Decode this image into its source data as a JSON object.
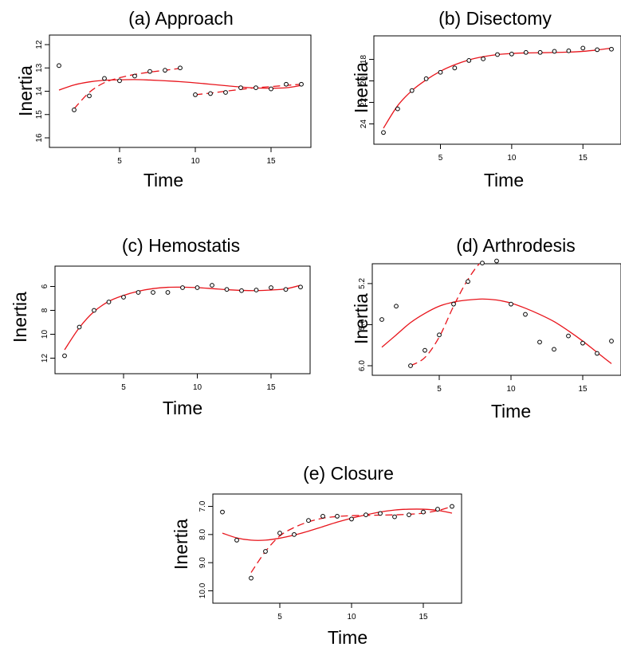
{
  "colors": {
    "fit": "#e8141b",
    "points": "#000000",
    "frame": "#000000",
    "background": "#ffffff"
  },
  "chart_data": [
    {
      "type": "scatter",
      "title": "(a) Approach",
      "xlabel": "Time",
      "ylabel": "Inertia",
      "xlim": [
        1,
        17
      ],
      "ylim": [
        16,
        12
      ],
      "y_reversed": true,
      "xticks": [
        5,
        10,
        15
      ],
      "yticks": [
        12,
        13,
        14,
        15,
        16
      ],
      "points": {
        "x": [
          1,
          2,
          3,
          4,
          5,
          6,
          7,
          8,
          9,
          10,
          11,
          12,
          13,
          14,
          15,
          16,
          17
        ],
        "y": [
          12.9,
          14.8,
          14.2,
          13.45,
          13.55,
          13.35,
          13.15,
          13.1,
          13.0,
          14.15,
          14.1,
          14.05,
          13.85,
          13.85,
          13.9,
          13.7,
          13.7
        ]
      },
      "fit_solid": {
        "x": [
          1,
          2,
          3,
          4,
          5,
          6,
          7,
          8,
          9,
          10,
          11,
          12,
          13,
          14,
          15,
          16,
          17
        ],
        "y": [
          13.95,
          13.73,
          13.6,
          13.53,
          13.51,
          13.5,
          13.52,
          13.55,
          13.59,
          13.64,
          13.7,
          13.76,
          13.82,
          13.86,
          13.87,
          13.85,
          13.75
        ]
      },
      "fit_dashed": [
        {
          "x": [
            2,
            3,
            4,
            5,
            6,
            7,
            8,
            9
          ],
          "y": [
            14.75,
            14.05,
            13.63,
            13.42,
            13.28,
            13.18,
            13.1,
            13.02
          ]
        },
        {
          "x": [
            10,
            11,
            12,
            13,
            14,
            15,
            16,
            17
          ],
          "y": [
            14.15,
            14.08,
            14.0,
            13.92,
            13.85,
            13.8,
            13.75,
            13.7
          ]
        }
      ]
    },
    {
      "type": "scatter",
      "title": "(b) Disectomy",
      "xlabel": "Time",
      "ylabel": "Inertia",
      "xlim": [
        1,
        17
      ],
      "ylim": [
        25,
        16.7
      ],
      "y_reversed": true,
      "xticks": [
        5,
        10,
        15
      ],
      "yticks": [
        18,
        20,
        22,
        24
      ],
      "points": {
        "x": [
          1,
          2,
          3,
          4,
          5,
          6,
          7,
          8,
          9,
          10,
          11,
          12,
          13,
          14,
          15,
          16,
          17
        ],
        "y": [
          24.8,
          22.6,
          20.9,
          19.8,
          19.2,
          18.8,
          18.1,
          17.95,
          17.55,
          17.5,
          17.35,
          17.35,
          17.25,
          17.2,
          16.95,
          17.1,
          17.05
        ]
      },
      "fit_solid": {
        "x": [
          1,
          2,
          3,
          4,
          5,
          6,
          7,
          8,
          9,
          10,
          11,
          12,
          13,
          14,
          15,
          16,
          17
        ],
        "y": [
          24.4,
          22.3,
          20.9,
          19.9,
          19.1,
          18.5,
          18.05,
          17.75,
          17.55,
          17.45,
          17.4,
          17.38,
          17.36,
          17.32,
          17.25,
          17.12,
          16.95
        ]
      },
      "fit_dashed": []
    },
    {
      "type": "scatter",
      "title": "(c) Hemostatis",
      "xlabel": "Time",
      "ylabel": "Inertia",
      "xlim": [
        1,
        17
      ],
      "ylim": [
        12.5,
        5.1
      ],
      "y_reversed": true,
      "xticks": [
        5,
        10,
        15
      ],
      "yticks": [
        6,
        8,
        10,
        12
      ],
      "points": {
        "x": [
          1,
          2,
          3,
          4,
          5,
          6,
          7,
          8,
          9,
          10,
          11,
          12,
          13,
          14,
          15,
          16,
          17
        ],
        "y": [
          11.8,
          9.4,
          8.0,
          7.3,
          6.9,
          6.5,
          6.5,
          6.5,
          6.1,
          6.1,
          5.9,
          6.25,
          6.35,
          6.3,
          6.1,
          6.25,
          6.05
        ]
      },
      "fit_solid": {
        "x": [
          1,
          2,
          3,
          4,
          5,
          6,
          7,
          8,
          9,
          10,
          11,
          12,
          13,
          14,
          15,
          16,
          17
        ],
        "y": [
          11.3,
          9.45,
          8.1,
          7.25,
          6.75,
          6.4,
          6.18,
          6.07,
          6.06,
          6.1,
          6.18,
          6.27,
          6.33,
          6.35,
          6.3,
          6.2,
          5.9
        ]
      },
      "fit_dashed": []
    },
    {
      "type": "scatter",
      "title": "(d) Arthrodesis",
      "xlabel": "Time",
      "ylabel": "Inertia",
      "xlim": [
        1,
        17
      ],
      "ylim": [
        6.0,
        5.1
      ],
      "y_reversed": true,
      "xticks": [
        5,
        10,
        15
      ],
      "yticks": [
        6.0,
        5.6,
        5.2
      ],
      "points": {
        "x": [
          1,
          2,
          3,
          4,
          5,
          6,
          7,
          8,
          9,
          10,
          11,
          12,
          13,
          14,
          15,
          16,
          17
        ],
        "y": [
          5.55,
          5.42,
          6.0,
          5.85,
          5.7,
          5.4,
          5.18,
          5.0,
          4.98,
          5.4,
          5.5,
          5.77,
          5.84,
          5.71,
          5.78,
          5.88,
          5.76
        ]
      },
      "fit_solid": {
        "x": [
          1,
          2,
          3,
          4,
          5,
          6,
          7,
          8,
          9,
          10,
          11,
          12,
          13,
          14,
          15,
          16,
          17
        ],
        "y": [
          5.82,
          5.7,
          5.58,
          5.49,
          5.42,
          5.38,
          5.36,
          5.35,
          5.36,
          5.39,
          5.44,
          5.5,
          5.57,
          5.66,
          5.76,
          5.87,
          5.98
        ]
      },
      "fit_dashed": [
        {
          "x": [
            3,
            4,
            5,
            6,
            7,
            8,
            9
          ],
          "y": [
            6.0,
            5.92,
            5.72,
            5.42,
            5.16,
            4.98,
            4.93
          ]
        }
      ]
    },
    {
      "type": "scatter",
      "title": "(e) Closure",
      "xlabel": "Time",
      "ylabel": "Inertia",
      "xlim": [
        1,
        17
      ],
      "ylim": [
        10.1,
        6.9
      ],
      "y_reversed": true,
      "xticks": [
        5,
        10,
        15
      ],
      "yticks": [
        7.0,
        8.0,
        9.0,
        10.0
      ],
      "points": {
        "x": [
          1,
          2,
          3,
          4,
          5,
          6,
          7,
          8,
          9,
          10,
          11,
          12,
          13,
          14,
          15,
          16,
          17
        ],
        "y": [
          7.2,
          8.2,
          9.55,
          8.6,
          7.95,
          8.0,
          7.5,
          7.35,
          7.35,
          7.45,
          7.3,
          7.25,
          7.37,
          7.3,
          7.2,
          7.1,
          7.0
        ]
      },
      "fit_solid": {
        "x": [
          1,
          2,
          3,
          4,
          5,
          6,
          7,
          8,
          9,
          10,
          11,
          12,
          13,
          14,
          15,
          16,
          17
        ],
        "y": [
          7.95,
          8.12,
          8.2,
          8.2,
          8.13,
          8.02,
          7.88,
          7.72,
          7.56,
          7.42,
          7.3,
          7.2,
          7.13,
          7.1,
          7.1,
          7.14,
          7.24
        ]
      },
      "fit_dashed": [
        {
          "x": [
            3,
            4,
            5,
            6,
            7,
            8,
            9,
            10,
            11,
            12,
            13,
            14,
            15,
            16,
            17
          ],
          "y": [
            9.35,
            8.6,
            8.05,
            7.75,
            7.55,
            7.42,
            7.36,
            7.33,
            7.32,
            7.31,
            7.3,
            7.28,
            7.24,
            7.15,
            7.0
          ]
        }
      ]
    }
  ]
}
